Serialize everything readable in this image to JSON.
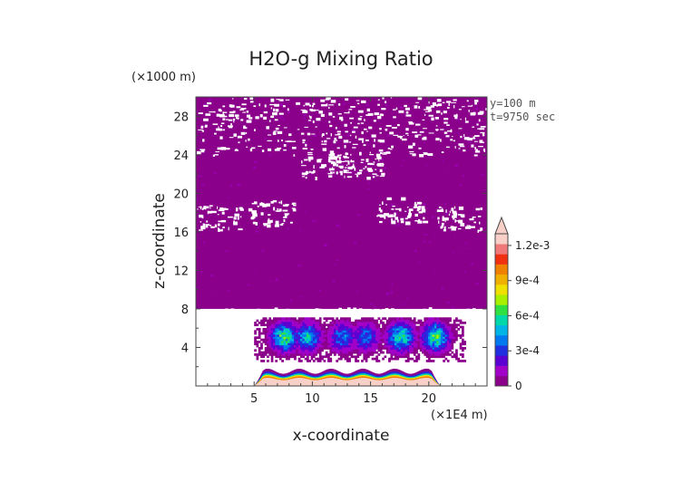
{
  "chart_data": {
    "type": "heatmap",
    "title": "H2O-g Mixing Ratio",
    "xlabel": "x-coordinate",
    "ylabel": "z-coordinate",
    "x_unit": "(×1E4 m)",
    "y_unit": "(×1000 m)",
    "annotations": [
      "y=100 m",
      "t=9750 sec"
    ],
    "xlim": [
      0,
      25
    ],
    "ylim": [
      0,
      30
    ],
    "xticks": [
      5,
      10,
      15,
      20
    ],
    "yticks": [
      4,
      8,
      12,
      16,
      20,
      24,
      28
    ],
    "colorbar": {
      "min": 0,
      "max": 0.0013,
      "levels": 13,
      "tick_labels": [
        "0",
        "3e-4",
        "6e-4",
        "9e-4",
        "1.2e-3"
      ],
      "tick_values": [
        0,
        0.0003,
        0.0006,
        0.0009,
        0.0012
      ],
      "colors": [
        "#8b008b",
        "#a100c8",
        "#5a00d2",
        "#2030e0",
        "#0078f0",
        "#00b4e6",
        "#00d8aa",
        "#30e040",
        "#a8f000",
        "#f0e000",
        "#f0b000",
        "#f08000",
        "#f03010",
        "#f07878",
        "#f8d0c8"
      ],
      "extend": "max"
    },
    "regions": [
      {
        "name": "upper uniform layer",
        "x_range": [
          0,
          25
        ],
        "z_range": [
          8,
          30
        ],
        "value": 1e-05
      },
      {
        "name": "moist convective band",
        "x_range": [
          5,
          23
        ],
        "z_range": [
          2.5,
          7
        ],
        "value_max": 0.0009
      },
      {
        "name": "surface moist layer",
        "x_range": [
          5,
          21
        ],
        "z_range": [
          0,
          2
        ],
        "value_max": 0.0013
      }
    ]
  }
}
